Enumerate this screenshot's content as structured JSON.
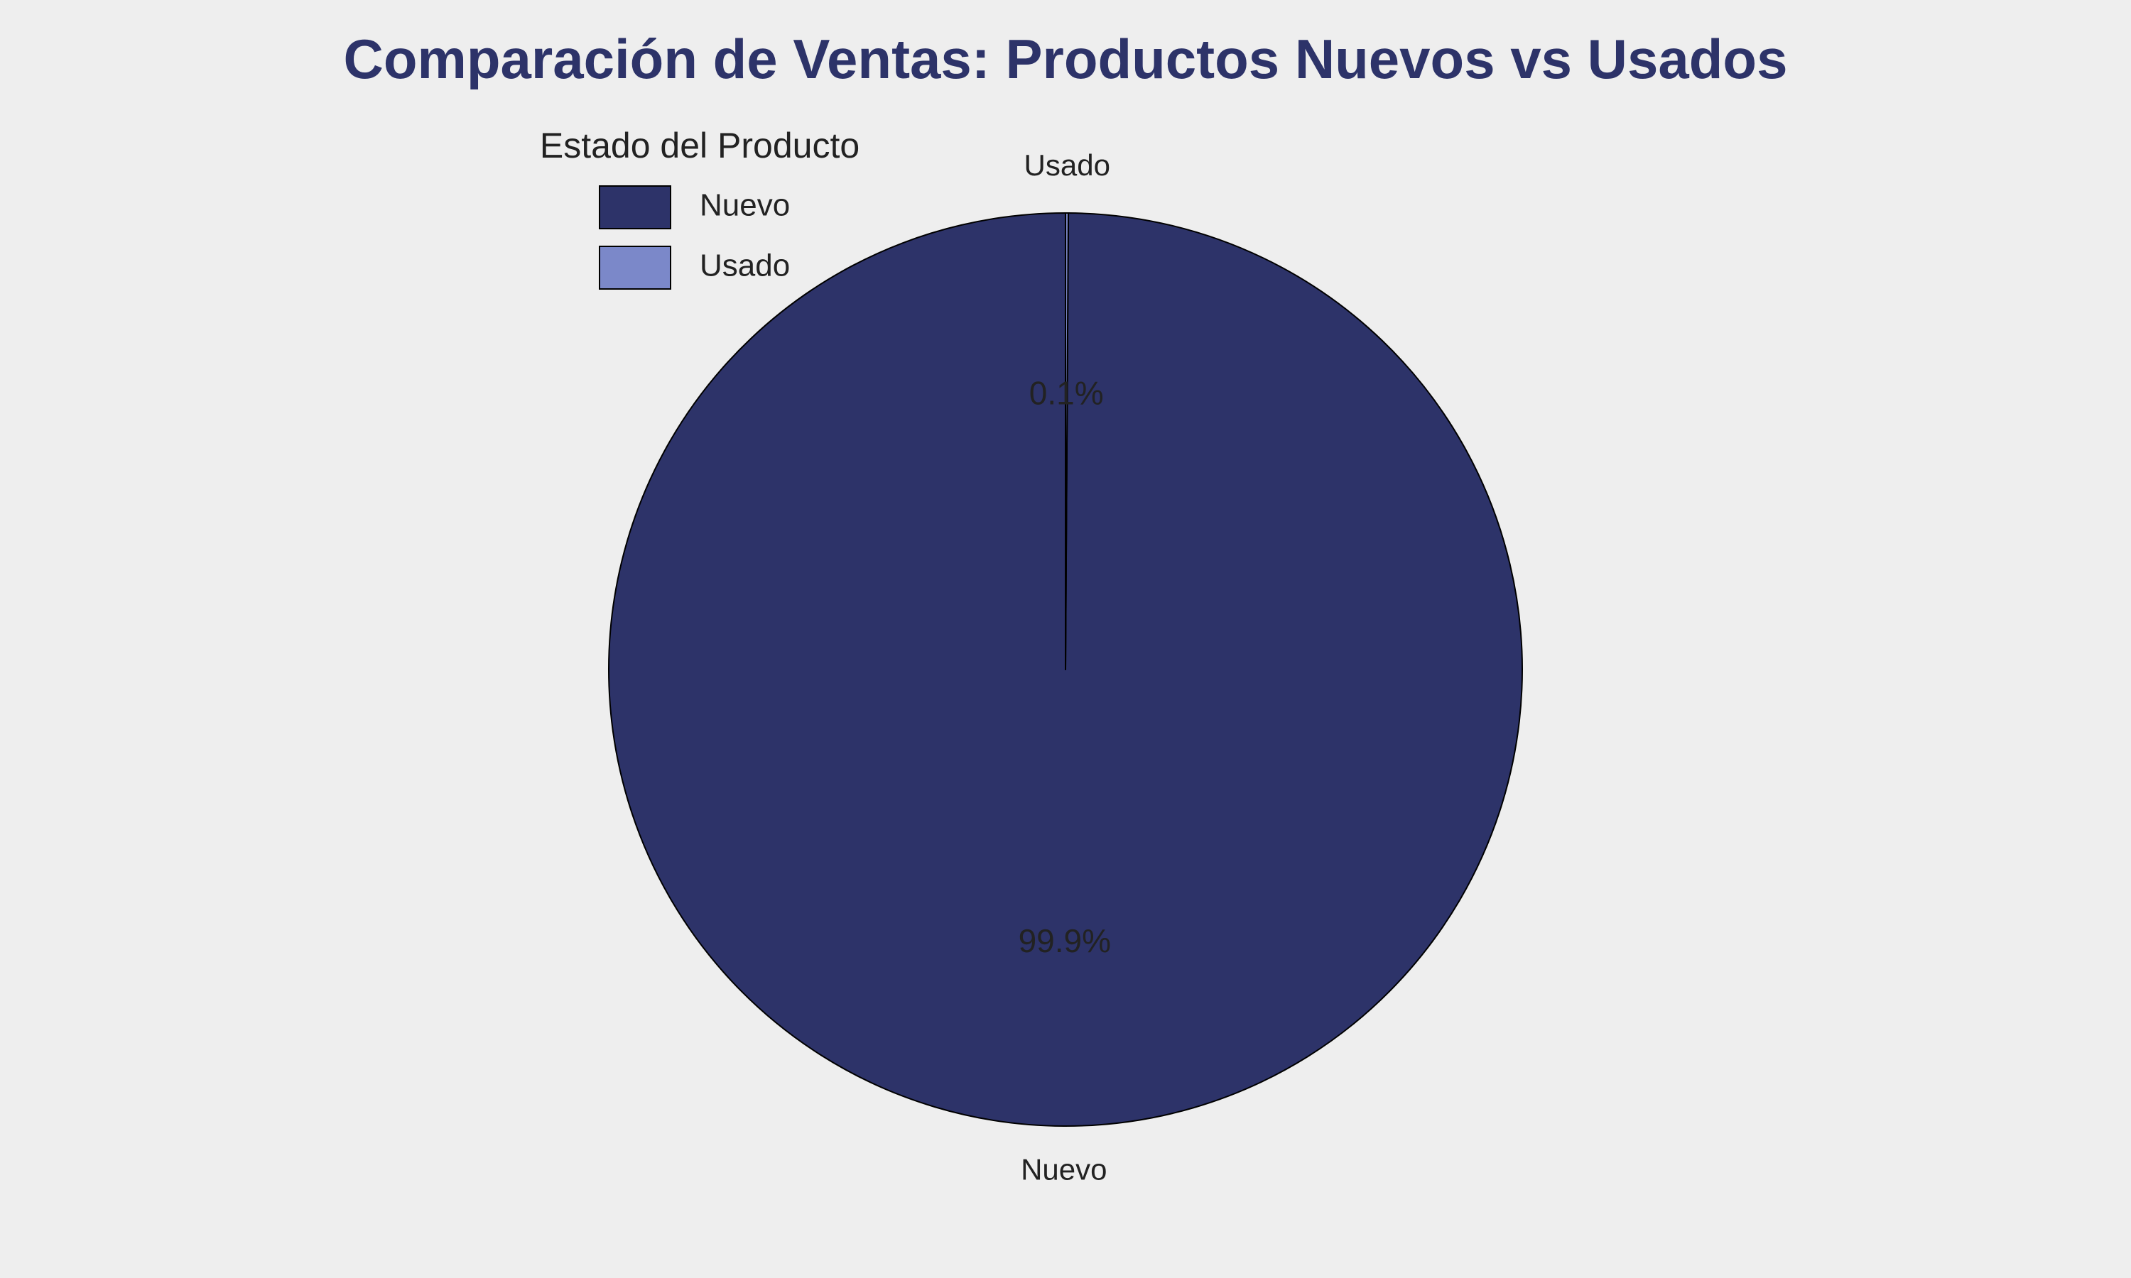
{
  "chart_data": {
    "type": "pie",
    "title": "Comparación de Ventas: Productos Nuevos vs Usados",
    "legend": {
      "title": "Estado del Producto",
      "placement": "upper-left"
    },
    "start_angle_deg": 90,
    "direction": "counterclockwise",
    "slices": [
      {
        "label": "Nuevo",
        "value": 99.9,
        "pct_label": "99.9%",
        "color": "#2d3369"
      },
      {
        "label": "Usado",
        "value": 0.1,
        "pct_label": "0.1%",
        "color": "#7b88c9"
      }
    ],
    "edge_color": "#000000",
    "title_color": "#2d3369",
    "text_color": "#222222",
    "background": "#eeeeee"
  }
}
